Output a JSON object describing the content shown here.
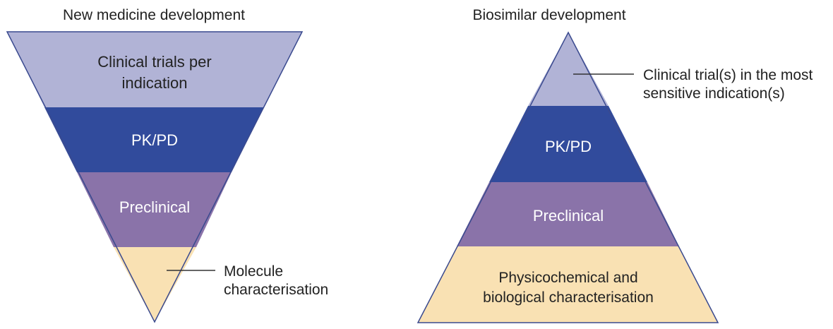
{
  "left_diagram": {
    "title": "New medicine development",
    "layers": [
      {
        "label_lines": [
          "Clinical trials per",
          "indication"
        ],
        "fill": "#b1b3d6"
      },
      {
        "label_lines": [
          "PK/PD"
        ],
        "fill": "#314b9c"
      },
      {
        "label_lines": [
          "Preclinical"
        ],
        "fill": "#8a73a9"
      },
      {
        "label_lines": [],
        "fill": "#f9e1b3"
      }
    ],
    "callout": {
      "lines": [
        "Molecule",
        "characterisation"
      ]
    }
  },
  "right_diagram": {
    "title": "Biosimilar development",
    "layers": [
      {
        "label_lines": [],
        "fill": "#b1b3d6"
      },
      {
        "label_lines": [
          "PK/PD"
        ],
        "fill": "#314b9c"
      },
      {
        "label_lines": [
          "Preclinical"
        ],
        "fill": "#8a73a9"
      },
      {
        "label_lines": [
          "Physicochemical and",
          "biological characterisation"
        ],
        "fill": "#f9e1b3"
      }
    ],
    "callout": {
      "lines": [
        "Clinical trial(s) in the most",
        "sensitive indication(s)"
      ]
    }
  },
  "colors": {
    "outline": "#3a4a8f",
    "dark_text": "#222222",
    "light_text": "#ffffff"
  }
}
